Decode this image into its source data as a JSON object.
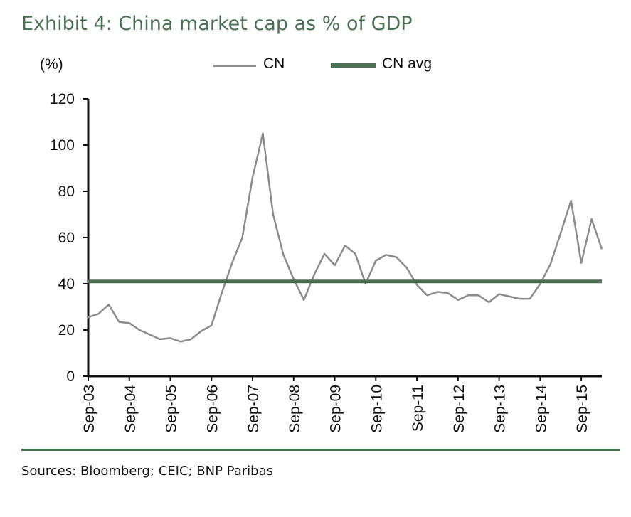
{
  "title": "Exhibit 4: China market cap as % of GDP",
  "units": "(%)",
  "source": "Sources: Bloomberg; CEIC; BNP Paribas",
  "legend": [
    {
      "label": "CN",
      "color": "#8c8c8c",
      "style": "thin-line"
    },
    {
      "label": "CN avg",
      "color": "#4a7052",
      "style": "thick-line"
    }
  ],
  "chart_data": {
    "type": "line",
    "ylim": [
      0,
      120
    ],
    "yticks": [
      0,
      20,
      40,
      60,
      80,
      100,
      120
    ],
    "xtick_labels": [
      "Sep-03",
      "Sep-04",
      "Sep-05",
      "Sep-06",
      "Sep-07",
      "Sep-08",
      "Sep-09",
      "Sep-10",
      "Sep-11",
      "Sep-12",
      "Sep-13",
      "Sep-14",
      "Sep-15"
    ],
    "x_start": "Sep-03",
    "x_end": "Mar-16",
    "grid": false,
    "legend_position": "top",
    "series": [
      {
        "name": "CN",
        "color": "#8c8c8c",
        "x": [
          "Sep-03",
          "Dec-03",
          "Mar-04",
          "Jun-04",
          "Sep-04",
          "Dec-04",
          "Mar-05",
          "Jun-05",
          "Sep-05",
          "Dec-05",
          "Mar-06",
          "Jun-06",
          "Sep-06",
          "Dec-06",
          "Mar-07",
          "Jun-07",
          "Sep-07",
          "Dec-07",
          "Mar-08",
          "Jun-08",
          "Sep-08",
          "Dec-08",
          "Mar-09",
          "Jun-09",
          "Sep-09",
          "Dec-09",
          "Mar-10",
          "Jun-10",
          "Sep-10",
          "Dec-10",
          "Mar-11",
          "Jun-11",
          "Sep-11",
          "Dec-11",
          "Mar-12",
          "Jun-12",
          "Sep-12",
          "Dec-12",
          "Mar-13",
          "Jun-13",
          "Sep-13",
          "Dec-13",
          "Mar-14",
          "Jun-14",
          "Sep-14",
          "Dec-14",
          "Mar-15",
          "Jun-15",
          "Sep-15",
          "Dec-15",
          "Mar-16"
        ],
        "values": [
          25.5,
          27,
          31,
          23.5,
          23,
          20,
          18,
          16,
          16.5,
          15,
          16,
          19.5,
          22,
          36,
          49,
          60,
          86,
          105,
          70,
          52.5,
          42,
          33,
          44,
          53,
          48,
          56.5,
          53,
          40,
          50,
          52.5,
          51.5,
          47,
          39.5,
          35,
          36.5,
          36,
          33,
          35,
          35,
          32,
          35.5,
          34.5,
          33.5,
          33.5,
          40,
          48.5,
          62,
          76,
          49,
          68,
          55
        ]
      },
      {
        "name": "CN avg",
        "color": "#4a7052",
        "value": 41
      }
    ]
  }
}
